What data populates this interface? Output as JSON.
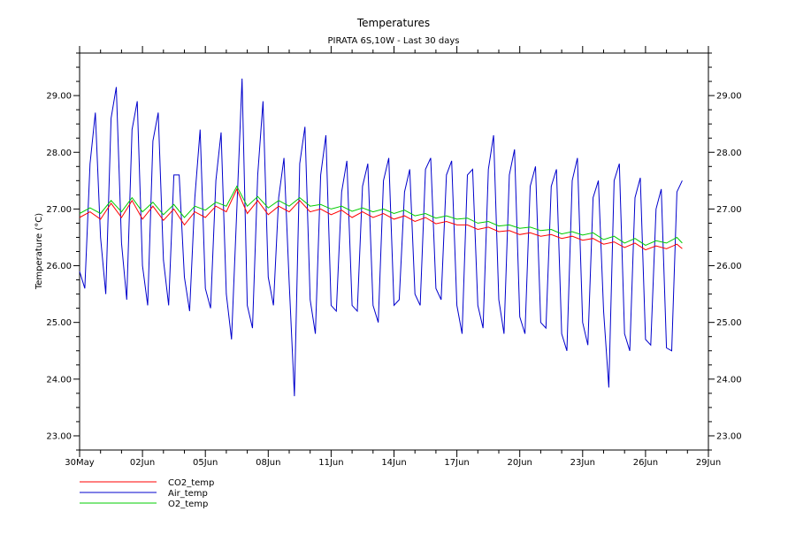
{
  "chart_data": {
    "type": "line",
    "title": "Temperatures",
    "subtitle": "PIRATA 6S,10W - Last 30 days",
    "ylabel": "Temperature (°C)",
    "xlabel": "",
    "xlim": [
      "2024-05-30",
      "2024-06-29"
    ],
    "ylim": [
      22.75,
      29.75
    ],
    "xticks": [
      {
        "date": "2024-05-30",
        "label": "30May"
      },
      {
        "date": "2024-06-02",
        "label": "02Jun"
      },
      {
        "date": "2024-06-05",
        "label": "05Jun"
      },
      {
        "date": "2024-06-08",
        "label": "08Jun"
      },
      {
        "date": "2024-06-11",
        "label": "11Jun"
      },
      {
        "date": "2024-06-14",
        "label": "14Jun"
      },
      {
        "date": "2024-06-17",
        "label": "17Jun"
      },
      {
        "date": "2024-06-20",
        "label": "20Jun"
      },
      {
        "date": "2024-06-23",
        "label": "23Jun"
      },
      {
        "date": "2024-06-26",
        "label": "26Jun"
      },
      {
        "date": "2024-06-29",
        "label": "29Jun"
      }
    ],
    "yticks": [
      {
        "value": 23,
        "label": "23.00"
      },
      {
        "value": 24,
        "label": "24.00"
      },
      {
        "value": 25,
        "label": "25.00"
      },
      {
        "value": 26,
        "label": "26.00"
      },
      {
        "value": 27,
        "label": "27.00"
      },
      {
        "value": 28,
        "label": "28.00"
      },
      {
        "value": 29,
        "label": "29.00"
      }
    ],
    "grid": false,
    "legend_position": "bottom-left",
    "series": [
      {
        "name": "CO2_temp",
        "color": "#ff0000",
        "x": [
          "2024-05-30T00:00",
          "2024-05-30T12:00",
          "2024-05-31T00:00",
          "2024-05-31T12:00",
          "2024-06-01T00:00",
          "2024-06-01T12:00",
          "2024-06-02T00:00",
          "2024-06-02T12:00",
          "2024-06-03T00:00",
          "2024-06-03T12:00",
          "2024-06-04T00:00",
          "2024-06-04T12:00",
          "2024-06-05T00:00",
          "2024-06-05T12:00",
          "2024-06-06T00:00",
          "2024-06-06T12:00",
          "2024-06-07T00:00",
          "2024-06-07T12:00",
          "2024-06-08T00:00",
          "2024-06-08T12:00",
          "2024-06-09T00:00",
          "2024-06-09T12:00",
          "2024-06-10T00:00",
          "2024-06-10T12:00",
          "2024-06-11T00:00",
          "2024-06-11T12:00",
          "2024-06-12T00:00",
          "2024-06-12T12:00",
          "2024-06-13T00:00",
          "2024-06-13T12:00",
          "2024-06-14T00:00",
          "2024-06-14T12:00",
          "2024-06-15T00:00",
          "2024-06-15T12:00",
          "2024-06-16T00:00",
          "2024-06-16T12:00",
          "2024-06-17T00:00",
          "2024-06-17T12:00",
          "2024-06-18T00:00",
          "2024-06-18T12:00",
          "2024-06-19T00:00",
          "2024-06-19T12:00",
          "2024-06-20T00:00",
          "2024-06-20T12:00",
          "2024-06-21T00:00",
          "2024-06-21T12:00",
          "2024-06-22T00:00",
          "2024-06-22T12:00",
          "2024-06-23T00:00",
          "2024-06-23T12:00",
          "2024-06-24T00:00",
          "2024-06-24T12:00",
          "2024-06-25T00:00",
          "2024-06-25T12:00",
          "2024-06-26T00:00",
          "2024-06-26T12:00",
          "2024-06-27T00:00",
          "2024-06-27T12:00",
          "2024-06-27T18:00"
        ],
        "y": [
          26.85,
          26.95,
          26.82,
          27.1,
          26.85,
          27.15,
          26.82,
          27.05,
          26.8,
          27.0,
          26.72,
          26.95,
          26.85,
          27.05,
          26.95,
          27.35,
          26.92,
          27.15,
          26.9,
          27.05,
          26.95,
          27.15,
          26.95,
          27.0,
          26.9,
          26.98,
          26.85,
          26.95,
          26.85,
          26.92,
          26.82,
          26.88,
          26.78,
          26.85,
          26.74,
          26.78,
          26.72,
          26.72,
          26.64,
          26.68,
          26.6,
          26.62,
          26.55,
          26.58,
          26.52,
          26.55,
          26.48,
          26.52,
          26.45,
          26.48,
          26.38,
          26.42,
          26.32,
          26.4,
          26.28,
          26.35,
          26.3,
          26.38,
          26.3
        ]
      },
      {
        "name": "Air_temp",
        "color": "#0000cc",
        "x": [
          "2024-05-30T00:00",
          "2024-05-30T06:00",
          "2024-05-30T12:00",
          "2024-05-30T18:00",
          "2024-05-31T00:00",
          "2024-05-31T06:00",
          "2024-05-31T12:00",
          "2024-05-31T18:00",
          "2024-06-01T00:00",
          "2024-06-01T06:00",
          "2024-06-01T12:00",
          "2024-06-01T18:00",
          "2024-06-02T00:00",
          "2024-06-02T06:00",
          "2024-06-02T12:00",
          "2024-06-02T18:00",
          "2024-06-03T00:00",
          "2024-06-03T06:00",
          "2024-06-03T12:00",
          "2024-06-03T18:00",
          "2024-06-04T00:00",
          "2024-06-04T06:00",
          "2024-06-04T12:00",
          "2024-06-04T18:00",
          "2024-06-05T00:00",
          "2024-06-05T06:00",
          "2024-06-05T12:00",
          "2024-06-05T18:00",
          "2024-06-06T00:00",
          "2024-06-06T06:00",
          "2024-06-06T12:00",
          "2024-06-06T18:00",
          "2024-06-07T00:00",
          "2024-06-07T06:00",
          "2024-06-07T12:00",
          "2024-06-07T18:00",
          "2024-06-08T00:00",
          "2024-06-08T06:00",
          "2024-06-08T12:00",
          "2024-06-08T18:00",
          "2024-06-09T00:00",
          "2024-06-09T06:00",
          "2024-06-09T12:00",
          "2024-06-09T18:00",
          "2024-06-10T00:00",
          "2024-06-10T06:00",
          "2024-06-10T12:00",
          "2024-06-10T18:00",
          "2024-06-11T00:00",
          "2024-06-11T06:00",
          "2024-06-11T12:00",
          "2024-06-11T18:00",
          "2024-06-12T00:00",
          "2024-06-12T06:00",
          "2024-06-12T12:00",
          "2024-06-12T18:00",
          "2024-06-13T00:00",
          "2024-06-13T06:00",
          "2024-06-13T12:00",
          "2024-06-13T18:00",
          "2024-06-14T00:00",
          "2024-06-14T06:00",
          "2024-06-14T12:00",
          "2024-06-14T18:00",
          "2024-06-15T00:00",
          "2024-06-15T06:00",
          "2024-06-15T12:00",
          "2024-06-15T18:00",
          "2024-06-16T00:00",
          "2024-06-16T06:00",
          "2024-06-16T12:00",
          "2024-06-16T18:00",
          "2024-06-17T00:00",
          "2024-06-17T06:00",
          "2024-06-17T12:00",
          "2024-06-17T18:00",
          "2024-06-18T00:00",
          "2024-06-18T06:00",
          "2024-06-18T12:00",
          "2024-06-18T18:00",
          "2024-06-19T00:00",
          "2024-06-19T06:00",
          "2024-06-19T12:00",
          "2024-06-19T18:00",
          "2024-06-20T00:00",
          "2024-06-20T06:00",
          "2024-06-20T12:00",
          "2024-06-20T18:00",
          "2024-06-21T00:00",
          "2024-06-21T06:00",
          "2024-06-21T12:00",
          "2024-06-21T18:00",
          "2024-06-22T00:00",
          "2024-06-22T06:00",
          "2024-06-22T12:00",
          "2024-06-22T18:00",
          "2024-06-23T00:00",
          "2024-06-23T06:00",
          "2024-06-23T12:00",
          "2024-06-23T18:00",
          "2024-06-24T00:00",
          "2024-06-24T06:00",
          "2024-06-24T12:00",
          "2024-06-24T18:00",
          "2024-06-25T00:00",
          "2024-06-25T06:00",
          "2024-06-25T12:00",
          "2024-06-25T18:00",
          "2024-06-26T00:00",
          "2024-06-26T06:00",
          "2024-06-26T12:00",
          "2024-06-26T18:00",
          "2024-06-27T00:00",
          "2024-06-27T06:00",
          "2024-06-27T12:00",
          "2024-06-27T18:00"
        ],
        "y": [
          25.9,
          25.6,
          27.8,
          28.7,
          26.5,
          25.5,
          28.6,
          29.15,
          26.4,
          25.4,
          28.4,
          28.9,
          26.0,
          25.3,
          28.2,
          28.7,
          26.1,
          25.3,
          27.6,
          27.6,
          25.8,
          25.2,
          27.2,
          28.4,
          25.6,
          25.25,
          27.5,
          28.35,
          25.5,
          24.7,
          27.0,
          29.3,
          25.3,
          24.9,
          27.6,
          28.9,
          25.8,
          25.3,
          27.2,
          27.9,
          25.7,
          23.7,
          27.8,
          28.45,
          25.4,
          24.8,
          27.6,
          28.3,
          25.3,
          25.2,
          27.3,
          27.85,
          25.3,
          25.2,
          27.4,
          27.8,
          25.3,
          25.0,
          27.5,
          27.9,
          25.3,
          25.4,
          27.3,
          27.7,
          25.5,
          25.3,
          27.7,
          27.9,
          25.6,
          25.4,
          27.6,
          27.85,
          25.3,
          24.8,
          27.6,
          27.7,
          25.3,
          24.9,
          27.7,
          28.3,
          25.4,
          24.8,
          27.6,
          28.05,
          25.1,
          24.8,
          27.4,
          27.75,
          25.0,
          24.9,
          27.4,
          27.7,
          24.8,
          24.5,
          27.5,
          27.9,
          25.0,
          24.6,
          27.2,
          27.5,
          25.2,
          23.85,
          27.5,
          27.8,
          24.8,
          24.5,
          27.2,
          27.55,
          24.7,
          24.6,
          27.0,
          27.35,
          24.55,
          24.5,
          27.3,
          27.5
        ]
      },
      {
        "name": "O2_temp",
        "color": "#00cc00",
        "x": [
          "2024-05-30T00:00",
          "2024-05-30T12:00",
          "2024-05-31T00:00",
          "2024-05-31T12:00",
          "2024-06-01T00:00",
          "2024-06-01T12:00",
          "2024-06-02T00:00",
          "2024-06-02T12:00",
          "2024-06-03T00:00",
          "2024-06-03T12:00",
          "2024-06-04T00:00",
          "2024-06-04T12:00",
          "2024-06-05T00:00",
          "2024-06-05T12:00",
          "2024-06-06T00:00",
          "2024-06-06T12:00",
          "2024-06-07T00:00",
          "2024-06-07T12:00",
          "2024-06-08T00:00",
          "2024-06-08T12:00",
          "2024-06-09T00:00",
          "2024-06-09T12:00",
          "2024-06-10T00:00",
          "2024-06-10T12:00",
          "2024-06-11T00:00",
          "2024-06-11T12:00",
          "2024-06-12T00:00",
          "2024-06-12T12:00",
          "2024-06-13T00:00",
          "2024-06-13T12:00",
          "2024-06-14T00:00",
          "2024-06-14T12:00",
          "2024-06-15T00:00",
          "2024-06-15T12:00",
          "2024-06-16T00:00",
          "2024-06-16T12:00",
          "2024-06-17T00:00",
          "2024-06-17T12:00",
          "2024-06-18T00:00",
          "2024-06-18T12:00",
          "2024-06-19T00:00",
          "2024-06-19T12:00",
          "2024-06-20T00:00",
          "2024-06-20T12:00",
          "2024-06-21T00:00",
          "2024-06-21T12:00",
          "2024-06-22T00:00",
          "2024-06-22T12:00",
          "2024-06-23T00:00",
          "2024-06-23T12:00",
          "2024-06-24T00:00",
          "2024-06-24T12:00",
          "2024-06-25T00:00",
          "2024-06-25T12:00",
          "2024-06-26T00:00",
          "2024-06-26T12:00",
          "2024-06-27T00:00",
          "2024-06-27T12:00",
          "2024-06-27T18:00"
        ],
        "y": [
          26.92,
          27.02,
          26.92,
          27.15,
          26.95,
          27.2,
          26.95,
          27.12,
          26.9,
          27.08,
          26.85,
          27.05,
          26.98,
          27.12,
          27.05,
          27.4,
          27.05,
          27.22,
          27.02,
          27.15,
          27.05,
          27.2,
          27.05,
          27.08,
          27.0,
          27.05,
          26.96,
          27.02,
          26.95,
          27.0,
          26.92,
          26.98,
          26.88,
          26.92,
          26.84,
          26.88,
          26.82,
          26.84,
          26.75,
          26.78,
          26.7,
          26.72,
          26.66,
          26.68,
          26.62,
          26.64,
          26.56,
          26.6,
          26.54,
          26.58,
          26.46,
          26.52,
          26.4,
          26.48,
          26.36,
          26.44,
          26.4,
          26.5,
          26.4
        ]
      }
    ]
  }
}
